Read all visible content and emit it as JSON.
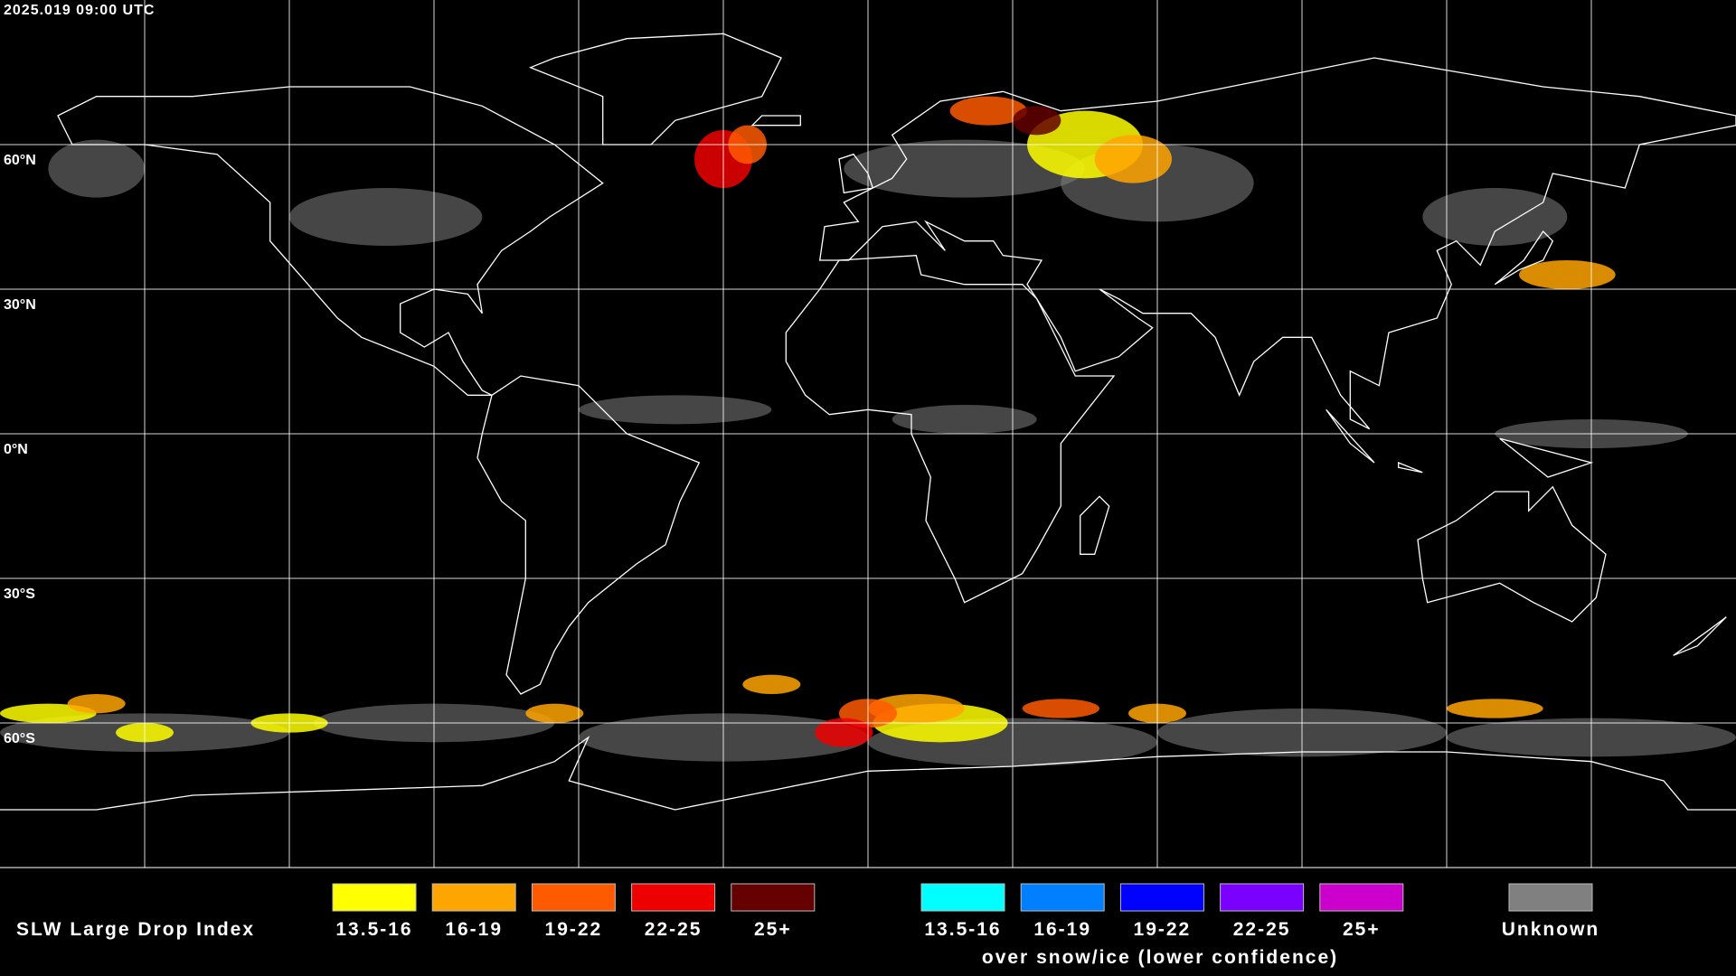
{
  "timestamp": "2025.019 09:00 UTC",
  "latitude_labels": [
    "60°N",
    "30°N",
    "0°N",
    "30°S",
    "60°S"
  ],
  "legend": {
    "title": "SLW Large Drop Index",
    "items": [
      {
        "label": "13.5-16",
        "color": "#ffff00"
      },
      {
        "label": "16-19",
        "color": "#ffa500"
      },
      {
        "label": "19-22",
        "color": "#ff5a00"
      },
      {
        "label": "22-25",
        "color": "#ee0000"
      },
      {
        "label": "25+",
        "color": "#640000"
      }
    ],
    "snow_ice_items": [
      {
        "label": "13.5-16",
        "color": "#00ffff"
      },
      {
        "label": "16-19",
        "color": "#0080ff"
      },
      {
        "label": "19-22",
        "color": "#0000ff"
      },
      {
        "label": "22-25",
        "color": "#7a00ff"
      },
      {
        "label": "25+",
        "color": "#cc00cc"
      }
    ],
    "snow_ice_note": "over snow/ice (lower confidence)",
    "unknown": {
      "label": "Unknown",
      "color": "#808080"
    }
  }
}
